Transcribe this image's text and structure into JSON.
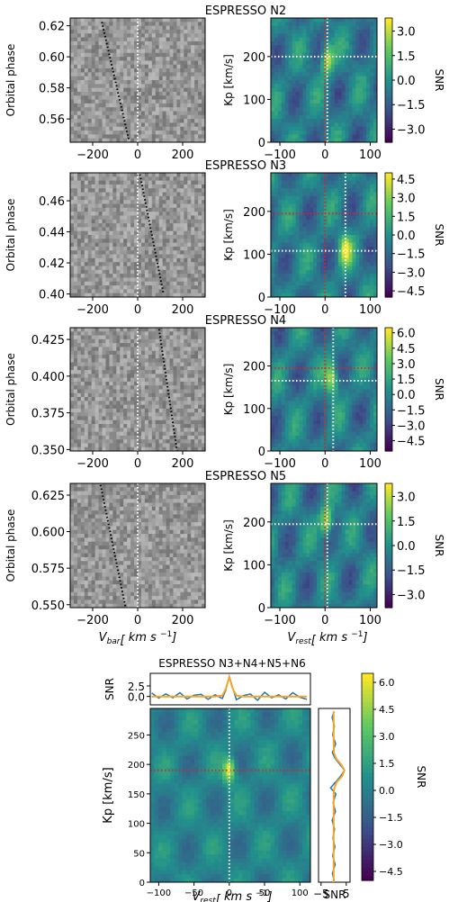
{
  "colors": {
    "cmap": [
      "#440154",
      "#3b528b",
      "#21918c",
      "#5ec962",
      "#fde725"
    ],
    "guide_white": "#ffffff",
    "guide_red": "#d62728",
    "trail_dot": "#000000",
    "series_blue": "#1f77b4",
    "series_orange": "#f5a623"
  },
  "x_label_bar": "bar",
  "x_label_rest": "rest",
  "x_unit": "km s",
  "x_unit_exp": "−1",
  "x_var": "V",
  "chart_data": [
    {
      "type": "heatmap",
      "title": "ESPRESSO N2",
      "left": {
        "ylabel": "Orbital phase",
        "xlim": [
          -300,
          300
        ],
        "ylim": [
          0.545,
          0.625
        ],
        "yticks": [
          "0.56",
          "0.58",
          "0.60",
          "0.62"
        ],
        "ytick_values": [
          0.56,
          0.58,
          0.6,
          0.62
        ],
        "xticks": [
          "−200",
          "0",
          "200"
        ],
        "xtick_values": [
          -200,
          0,
          200
        ],
        "trail": [
          [
            -40,
            0.547
          ],
          [
            -160,
            0.623
          ]
        ]
      },
      "right": {
        "ylabel": "Kp [km/s]",
        "xlim": [
          -120,
          115
        ],
        "ylim": [
          0,
          290
        ],
        "xticks": [
          "−100",
          "0",
          "100"
        ],
        "xtick_values": [
          -100,
          0,
          100
        ],
        "yticks": [
          "0",
          "100",
          "200"
        ],
        "ytick_values": [
          0,
          100,
          200
        ],
        "white_v": 5,
        "white_h": 200,
        "red_v": 0,
        "red_h": 200,
        "clabel": "SNR",
        "cticks": [
          "3.0",
          "1.5",
          "0.0",
          "−1.5",
          "−3.0"
        ],
        "ctick_values": [
          3.0,
          1.5,
          0.0,
          -1.5,
          -3.0
        ],
        "clim": [
          -3.8,
          3.8
        ],
        "peak": [
          5,
          195
        ]
      }
    },
    {
      "type": "heatmap",
      "title": "ESPRESSO N3",
      "left": {
        "ylabel": "Orbital phase",
        "xlim": [
          -300,
          300
        ],
        "ylim": [
          0.398,
          0.478
        ],
        "yticks": [
          "0.40",
          "0.42",
          "0.44",
          "0.46"
        ],
        "ytick_values": [
          0.4,
          0.42,
          0.44,
          0.46
        ],
        "xticks": [
          "−200",
          "0",
          "200"
        ],
        "xtick_values": [
          -200,
          0,
          200
        ],
        "trail": [
          [
            10,
            0.477
          ],
          [
            115,
            0.4
          ]
        ]
      },
      "right": {
        "ylabel": "Kp [km/s]",
        "xlim": [
          -120,
          115
        ],
        "ylim": [
          0,
          290
        ],
        "xticks": [
          "−100",
          "0",
          "100"
        ],
        "xtick_values": [
          -100,
          0,
          100
        ],
        "yticks": [
          "0",
          "100",
          "200"
        ],
        "ytick_values": [
          0,
          100,
          200
        ],
        "white_v": 45,
        "white_h": 108,
        "red_v": 0,
        "red_h": 195,
        "clabel": "SNR",
        "cticks": [
          "4.5",
          "3.0",
          "1.5",
          "0.0",
          "−1.5",
          "−3.0",
          "−4.5"
        ],
        "ctick_values": [
          4.5,
          3.0,
          1.5,
          0.0,
          -1.5,
          -3.0,
          -4.5
        ],
        "clim": [
          -5.0,
          5.0
        ],
        "peak": [
          45,
          108
        ]
      }
    },
    {
      "type": "heatmap",
      "title": "ESPRESSO N4",
      "left": {
        "ylabel": "Orbital phase",
        "xlim": [
          -300,
          300
        ],
        "ylim": [
          0.349,
          0.433
        ],
        "yticks": [
          "0.350",
          "0.375",
          "0.400",
          "0.425"
        ],
        "ytick_values": [
          0.35,
          0.375,
          0.4,
          0.425
        ],
        "xticks": [
          "−200",
          "0",
          "200"
        ],
        "xtick_values": [
          -200,
          0,
          200
        ],
        "trail": [
          [
            95,
            0.432
          ],
          [
            175,
            0.349
          ]
        ]
      },
      "right": {
        "ylabel": "Kp [km/s]",
        "xlim": [
          -120,
          115
        ],
        "ylim": [
          0,
          290
        ],
        "xticks": [
          "−100",
          "0",
          "100"
        ],
        "xtick_values": [
          -100,
          0,
          100
        ],
        "yticks": [
          "0",
          "100",
          "200"
        ],
        "ytick_values": [
          0,
          100,
          200
        ],
        "white_v": 18,
        "white_h": 165,
        "red_v": 0,
        "red_h": 195,
        "clabel": "SNR",
        "cticks": [
          "6.0",
          "4.5",
          "3.0",
          "1.5",
          "0.0",
          "−1.5",
          "−3.0",
          "−4.5"
        ],
        "ctick_values": [
          6.0,
          4.5,
          3.0,
          1.5,
          0.0,
          -1.5,
          -3.0,
          -4.5
        ],
        "clim": [
          -5.5,
          6.5
        ],
        "peak": [
          15,
          170
        ]
      }
    },
    {
      "type": "heatmap",
      "title": "ESPRESSO N5",
      "left": {
        "ylabel": "Orbital phase",
        "xlim": [
          -300,
          300
        ],
        "ylim": [
          0.548,
          0.633
        ],
        "yticks": [
          "0.550",
          "0.575",
          "0.600",
          "0.625"
        ],
        "ytick_values": [
          0.55,
          0.575,
          0.6,
          0.625
        ],
        "xticks": [
          "−200",
          "0",
          "200"
        ],
        "xtick_values": [
          -200,
          0,
          200
        ],
        "trail": [
          [
            -55,
            0.549
          ],
          [
            -165,
            0.632
          ]
        ]
      },
      "right": {
        "ylabel": "Kp [km/s]",
        "xlim": [
          -120,
          115
        ],
        "ylim": [
          0,
          290
        ],
        "xticks": [
          "−100",
          "0",
          "100"
        ],
        "xtick_values": [
          -100,
          0,
          100
        ],
        "yticks": [
          "0",
          "100",
          "200"
        ],
        "ytick_values": [
          0,
          100,
          200
        ],
        "white_v": 5,
        "white_h": 195,
        "red_v": 0,
        "red_h": 195,
        "clabel": "SNR",
        "cticks": [
          "3.0",
          "1.5",
          "0.0",
          "−1.5",
          "−3.0"
        ],
        "ctick_values": [
          3.0,
          1.5,
          0.0,
          -1.5,
          -3.0
        ],
        "clim": [
          -3.8,
          3.8
        ],
        "peak": [
          3,
          200
        ]
      }
    },
    {
      "type": "heatmap",
      "title": "ESPRESSO N3+N4+N5+N6",
      "main": {
        "ylabel": "Kp [km/s]",
        "xlim": [
          -112,
          115
        ],
        "ylim": [
          0,
          295
        ],
        "xticks": [
          "−100",
          "−50",
          "0",
          "50",
          "100"
        ],
        "xtick_values": [
          -100,
          -50,
          0,
          50,
          100
        ],
        "yticks": [
          "0",
          "50",
          "100",
          "150",
          "200",
          "250"
        ],
        "ytick_values": [
          0,
          50,
          100,
          150,
          200,
          250
        ],
        "white_v": 0,
        "white_h": 190,
        "red_v": 0,
        "red_h": 190,
        "peak": [
          0,
          190
        ],
        "clabel": "SNR",
        "cticks": [
          "6.0",
          "4.5",
          "3.0",
          "1.5",
          "0.0",
          "−1.5",
          "−3.0",
          "−4.5"
        ],
        "ctick_values": [
          6.0,
          4.5,
          3.0,
          1.5,
          0.0,
          -1.5,
          -3.0,
          -4.5
        ],
        "clim": [
          -5.0,
          6.5
        ]
      },
      "top": {
        "ylabel": "SNR",
        "yticks": [
          "0.0",
          "2.5"
        ],
        "ytick_values": [
          0,
          2.5
        ],
        "ylim": [
          -2,
          5.5
        ],
        "x": [
          -110,
          -100,
          -90,
          -80,
          -70,
          -60,
          -50,
          -40,
          -30,
          -20,
          -10,
          -5,
          0,
          5,
          10,
          20,
          30,
          40,
          50,
          60,
          70,
          80,
          90,
          100,
          110
        ],
        "blue": [
          0.8,
          -0.4,
          0.6,
          -0.3,
          0.9,
          -0.6,
          0.3,
          0.5,
          -0.7,
          0.4,
          -0.5,
          1.5,
          4.8,
          2.0,
          -0.8,
          0.2,
          0.6,
          -0.9,
          1.0,
          -0.3,
          0.4,
          -0.6,
          0.9,
          -0.2,
          -0.7
        ],
        "orange": [
          0,
          0,
          0,
          0,
          0,
          0,
          0,
          0,
          0,
          0,
          0.2,
          1.8,
          4.6,
          1.8,
          0.2,
          0,
          0,
          0,
          0,
          0,
          0,
          0,
          0,
          0,
          0
        ]
      },
      "side": {
        "xlabel": "SNR",
        "xticks": [
          "−5",
          "5"
        ],
        "xtick_values": [
          -5,
          5
        ],
        "xlim": [
          -6,
          6.5
        ],
        "y": [
          0,
          15,
          30,
          45,
          60,
          75,
          90,
          105,
          120,
          135,
          150,
          160,
          170,
          180,
          190,
          200,
          210,
          220,
          235,
          250,
          265,
          280,
          290
        ],
        "blue": [
          0.3,
          -0.5,
          0.6,
          -0.4,
          0.5,
          -0.3,
          0.4,
          -0.6,
          0.7,
          -0.2,
          0.9,
          -1.2,
          0.8,
          2.8,
          4.3,
          2.5,
          0.6,
          -0.5,
          0.8,
          -0.4,
          0.3,
          -0.6,
          0.2
        ],
        "orange": [
          0,
          0,
          0,
          0,
          0,
          0,
          0,
          0,
          0,
          0,
          0,
          0.3,
          1.2,
          3.4,
          4.3,
          3.0,
          1.0,
          0.1,
          0,
          0,
          0,
          0,
          0
        ]
      }
    }
  ]
}
